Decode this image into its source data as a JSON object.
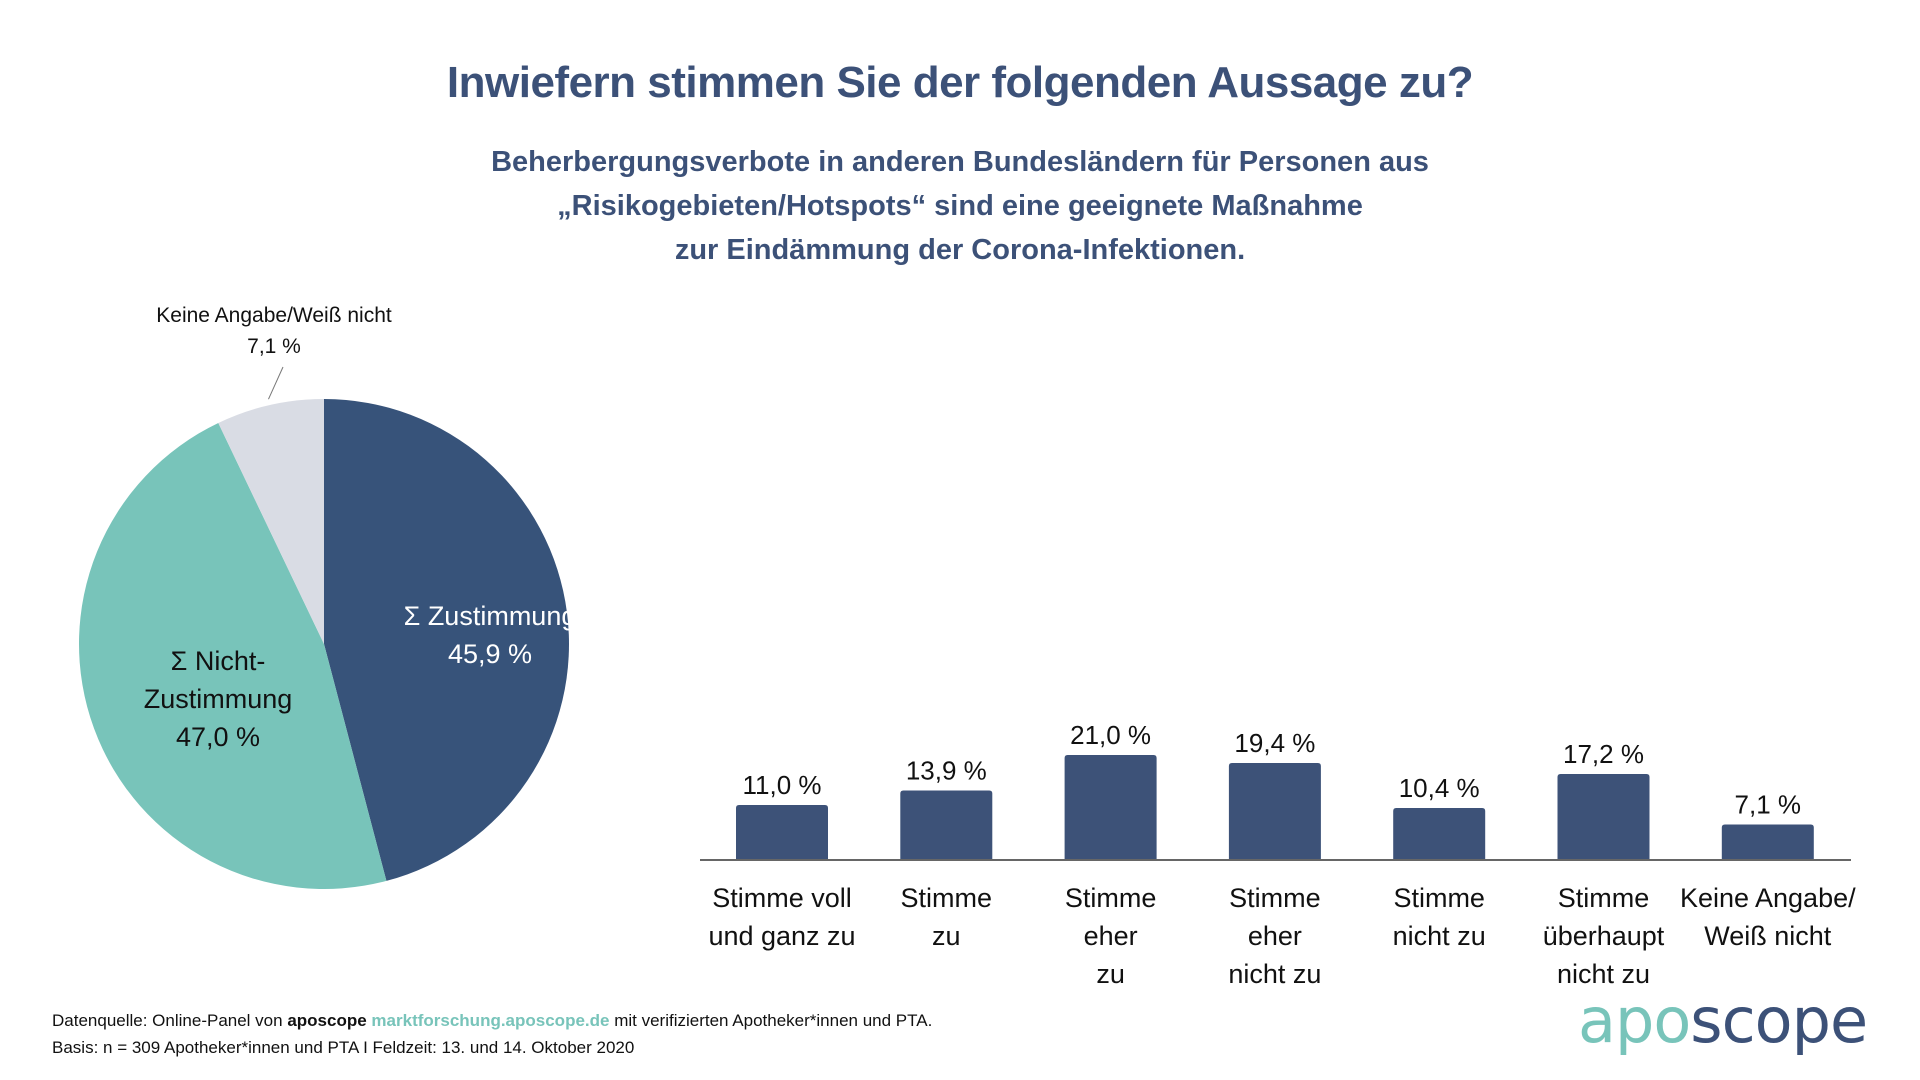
{
  "header": {
    "title": "Inwiefern stimmen Sie der folgenden Aussage zu?",
    "subtitle_lines": [
      "Beherbergungsverbote in anderen Bundesländern für Personen aus",
      "„Risikogebieten/Hotspots“ sind eine geeignete Maßnahme",
      "zur Eindämmung der Corona-Infektionen."
    ]
  },
  "colors": {
    "title": "#3c5178",
    "bar": "#3d5278",
    "pie_agree": "#37537a",
    "pie_disagree": "#78c4ba",
    "pie_unknown": "#d9dce4",
    "axis": "#666666",
    "brand_teal": "#78c4ba",
    "brand_navy": "#3c5178"
  },
  "chart_data": [
    {
      "type": "pie",
      "title": "",
      "slices": [
        {
          "label_lines": [
            "Σ Zustimmung",
            "45,9 %"
          ],
          "name": "Σ Zustimmung",
          "value": 45.9,
          "color": "#37537a",
          "label_color": "#ffffff"
        },
        {
          "label_lines": [
            "Σ Nicht-",
            "Zustimmung",
            "47,0 %"
          ],
          "name": "Σ Nicht-Zustimmung",
          "value": 47.0,
          "color": "#78c4ba",
          "label_color": "#111111"
        },
        {
          "label_lines": [
            "Keine Angabe/Weiß nicht",
            "7,1 %"
          ],
          "name": "Keine Angabe/Weiß nicht",
          "value": 7.1,
          "color": "#d9dce4",
          "label_color": "#111111",
          "label_outside": true
        }
      ],
      "start": "12 o'clock",
      "direction": "clockwise"
    },
    {
      "type": "bar",
      "title": "",
      "xlabel": "",
      "ylabel": "",
      "ylim": [
        0,
        25
      ],
      "grid": false,
      "categories": [
        [
          "Stimme voll",
          "und ganz zu"
        ],
        [
          "Stimme",
          "zu"
        ],
        [
          "Stimme",
          "eher",
          "zu"
        ],
        [
          "Stimme",
          "eher",
          "nicht zu"
        ],
        [
          "Stimme",
          "nicht zu"
        ],
        [
          "Stimme",
          "überhaupt",
          "nicht zu"
        ],
        [
          "Keine Angabe/",
          "Weiß nicht"
        ]
      ],
      "values": [
        11.0,
        13.9,
        21.0,
        19.4,
        10.4,
        17.2,
        7.1
      ],
      "value_labels": [
        "11,0 %",
        "13,9 %",
        "21,0 %",
        "19,4 %",
        "10,4 %",
        "17,2 %",
        "7,1 %"
      ]
    }
  ],
  "footer": {
    "line1_prefix": "Datenquelle: Online-Panel von ",
    "line1_brand": "aposcope",
    "line1_link": "marktforschung.aposcope.de",
    "line1_suffix": " mit verifizierten Apotheker*innen und PTA.",
    "line2": "Basis: n = 309 Apotheker*innen und PTA I Feldzeit: 13. und 14. Oktober 2020"
  },
  "logo": {
    "part1": "apo",
    "part2": "scope"
  }
}
